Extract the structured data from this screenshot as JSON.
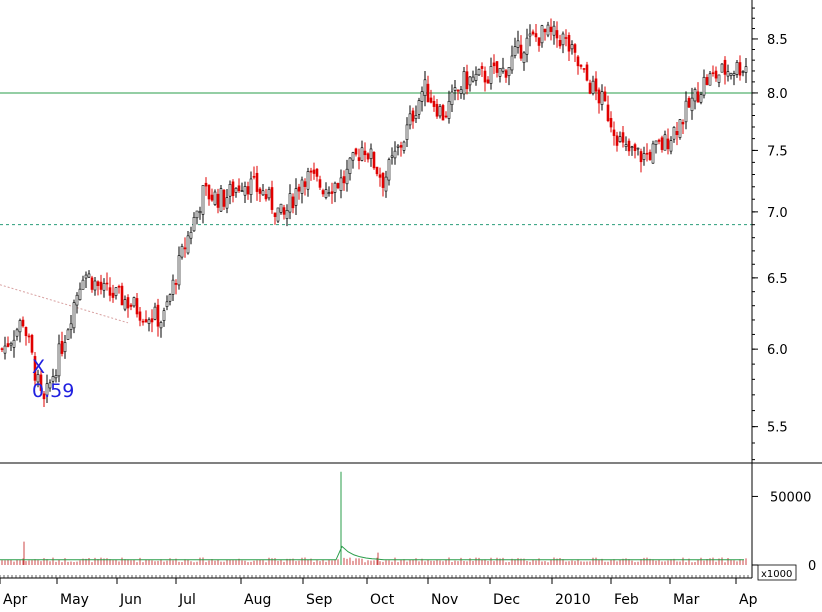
{
  "chart_data": [
    {
      "type": "candlestick",
      "panel": "price",
      "title": "",
      "xlabel": "",
      "ylabel": "",
      "y_tick_labels": [
        "5.5",
        "6.0",
        "6.5",
        "7.0",
        "7.5",
        "8.0",
        "8.5"
      ],
      "x_tick_labels": [
        "Apr",
        "May",
        "Jun",
        "Jul",
        "Aug",
        "Sep",
        "Oct",
        "Nov",
        "Dec",
        "2010",
        "Feb",
        "Mar",
        "Ap"
      ],
      "ylim": [
        5.28,
        8.88
      ],
      "log_scale": true,
      "up_color": "#000000",
      "down_color": "#e00000",
      "horizontal_lines": [
        {
          "value": 8.0,
          "style": "solid",
          "color": "#2a9d4a"
        },
        {
          "value": 6.9,
          "style": "dashed",
          "color": "#2a9d7a"
        }
      ],
      "trendline": {
        "x": [
          "Apr",
          "Jun"
        ],
        "y": [
          6.45,
          6.18
        ],
        "color": "#d8a0a0",
        "style": "dotted"
      },
      "annotation": {
        "marker": "X",
        "text": "0.59",
        "color": "#2020e0"
      },
      "close_series": {
        "x": [
          "Apr",
          "Apr",
          "Apr",
          "May",
          "May",
          "May",
          "Jun",
          "Jun",
          "Jun",
          "Jul",
          "Jul",
          "Jul",
          "Aug",
          "Aug",
          "Aug",
          "Sep",
          "Sep",
          "Sep",
          "Sep",
          "Oct",
          "Oct",
          "Oct",
          "Nov",
          "Nov",
          "Nov",
          "Dec",
          "Dec",
          "Dec",
          "2010",
          "2010",
          "2010",
          "Feb",
          "Feb",
          "Feb",
          "Mar",
          "Mar",
          "Mar",
          "Ap"
        ],
        "y": [
          6.0,
          6.2,
          5.62,
          6.05,
          6.55,
          6.4,
          6.35,
          6.25,
          6.2,
          6.7,
          7.15,
          7.1,
          7.25,
          7.15,
          6.95,
          7.3,
          7.2,
          7.25,
          7.55,
          7.25,
          7.6,
          8.05,
          7.8,
          8.1,
          8.15,
          8.2,
          8.45,
          8.55,
          8.5,
          8.15,
          7.9,
          7.5,
          7.45,
          7.55,
          7.8,
          8.1,
          8.2,
          8.25
        ]
      }
    },
    {
      "type": "bar",
      "panel": "volume",
      "title": "",
      "ylabel": "",
      "multiplier_label": "x1000",
      "y_tick_labels": [
        "0",
        "50000"
      ],
      "ylim": [
        0,
        70000
      ],
      "bar_color": "#cc4444",
      "moving_average_color": "#2a9d4a",
      "spikes": [
        {
          "x": "Apr",
          "value": 17000
        },
        {
          "x": "Sep",
          "value": 68000
        },
        {
          "x": "Oct",
          "value": 9000
        }
      ]
    }
  ]
}
